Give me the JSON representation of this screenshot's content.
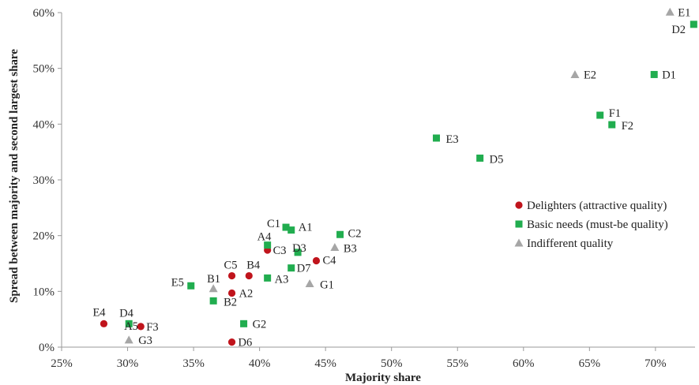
{
  "chart_data": {
    "type": "scatter",
    "xlabel": "Majority share",
    "ylabel": "Spread between majority and second largest share",
    "xlim": [
      0.25,
      0.73
    ],
    "ylim": [
      0,
      0.6
    ],
    "x_ticks": [
      "25%",
      "30%",
      "35%",
      "40%",
      "45%",
      "50%",
      "55%",
      "60%",
      "65%",
      "70%"
    ],
    "y_ticks": [
      "0%",
      "10%",
      "20%",
      "30%",
      "40%",
      "50%",
      "60%"
    ],
    "grid": false,
    "legend_position": "right",
    "series": [
      {
        "name": "Delighters (attractive quality)",
        "marker": "circle",
        "color": "#c0141c",
        "points": [
          {
            "label": "E4",
            "x": 0.282,
            "y": 0.042
          },
          {
            "label": "F3",
            "x": 0.31,
            "y": 0.037
          },
          {
            "label": "A2",
            "x": 0.379,
            "y": 0.097
          },
          {
            "label": "C5",
            "x": 0.379,
            "y": 0.128
          },
          {
            "label": "B4",
            "x": 0.392,
            "y": 0.128
          },
          {
            "label": "D6",
            "x": 0.379,
            "y": 0.009
          },
          {
            "label": "C3",
            "x": 0.406,
            "y": 0.174
          },
          {
            "label": "C4",
            "x": 0.443,
            "y": 0.155
          }
        ]
      },
      {
        "name": "Basic needs (must-be quality)",
        "marker": "square",
        "color": "#21ad4f",
        "points": [
          {
            "label": "D4",
            "x": 0.301,
            "y": 0.042
          },
          {
            "label": "E5",
            "x": 0.348,
            "y": 0.11
          },
          {
            "label": "B2",
            "x": 0.365,
            "y": 0.083
          },
          {
            "label": "G2",
            "x": 0.388,
            "y": 0.042
          },
          {
            "label": "A4",
            "x": 0.406,
            "y": 0.183
          },
          {
            "label": "A3",
            "x": 0.406,
            "y": 0.124
          },
          {
            "label": "C1",
            "x": 0.42,
            "y": 0.215
          },
          {
            "label": "A1",
            "x": 0.424,
            "y": 0.21
          },
          {
            "label": "D7",
            "x": 0.424,
            "y": 0.142
          },
          {
            "label": "D3",
            "x": 0.429,
            "y": 0.17
          },
          {
            "label": "C2",
            "x": 0.461,
            "y": 0.202
          },
          {
            "label": "E3",
            "x": 0.534,
            "y": 0.375
          },
          {
            "label": "D5",
            "x": 0.567,
            "y": 0.339
          },
          {
            "label": "F1",
            "x": 0.658,
            "y": 0.416
          },
          {
            "label": "F2",
            "x": 0.667,
            "y": 0.399
          },
          {
            "label": "D1",
            "x": 0.699,
            "y": 0.489
          },
          {
            "label": "D2",
            "x": 0.729,
            "y": 0.579
          }
        ]
      },
      {
        "name": "Indifferent quality",
        "marker": "triangle",
        "color": "#a6a6a6",
        "points": [
          {
            "label": "A5",
            "x": 0.301,
            "y": 0.013
          },
          {
            "label": "G3",
            "x": 0.301,
            "y": 0.013
          },
          {
            "label": "B1",
            "x": 0.365,
            "y": 0.105
          },
          {
            "label": "G1",
            "x": 0.438,
            "y": 0.114
          },
          {
            "label": "B3",
            "x": 0.457,
            "y": 0.179
          },
          {
            "label": "E2",
            "x": 0.639,
            "y": 0.489
          },
          {
            "label": "E1",
            "x": 0.711,
            "y": 0.601
          }
        ]
      }
    ]
  }
}
